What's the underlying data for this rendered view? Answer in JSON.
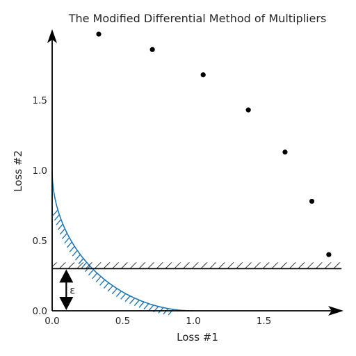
{
  "chart_data": {
    "type": "scatter",
    "title": "The Modified Differential Method of Multipliers",
    "xlabel": "Loss #1",
    "ylabel": "Loss #2",
    "xlim": [
      0,
      2.0
    ],
    "ylim": [
      0,
      2.0
    ],
    "xticks": [
      "0.0",
      "0.5",
      "1.0",
      "1.5"
    ],
    "yticks": [
      "0.0",
      "0.5",
      "1.0",
      "1.5"
    ],
    "points": [
      {
        "x": 0.33,
        "y": 1.97
      },
      {
        "x": 0.71,
        "y": 1.86
      },
      {
        "x": 1.07,
        "y": 1.68
      },
      {
        "x": 1.39,
        "y": 1.43
      },
      {
        "x": 1.65,
        "y": 1.13
      },
      {
        "x": 1.84,
        "y": 0.78
      },
      {
        "x": 1.96,
        "y": 0.4
      }
    ],
    "constraint": {
      "epsilon": 0.3,
      "label": "ε"
    },
    "frontier": {
      "shape": "quarter-circle-convex",
      "radius": 1.0
    },
    "colors": {
      "frontier": "#1f77b4",
      "points": "#000000",
      "axes": "#000000"
    },
    "grid": false
  }
}
